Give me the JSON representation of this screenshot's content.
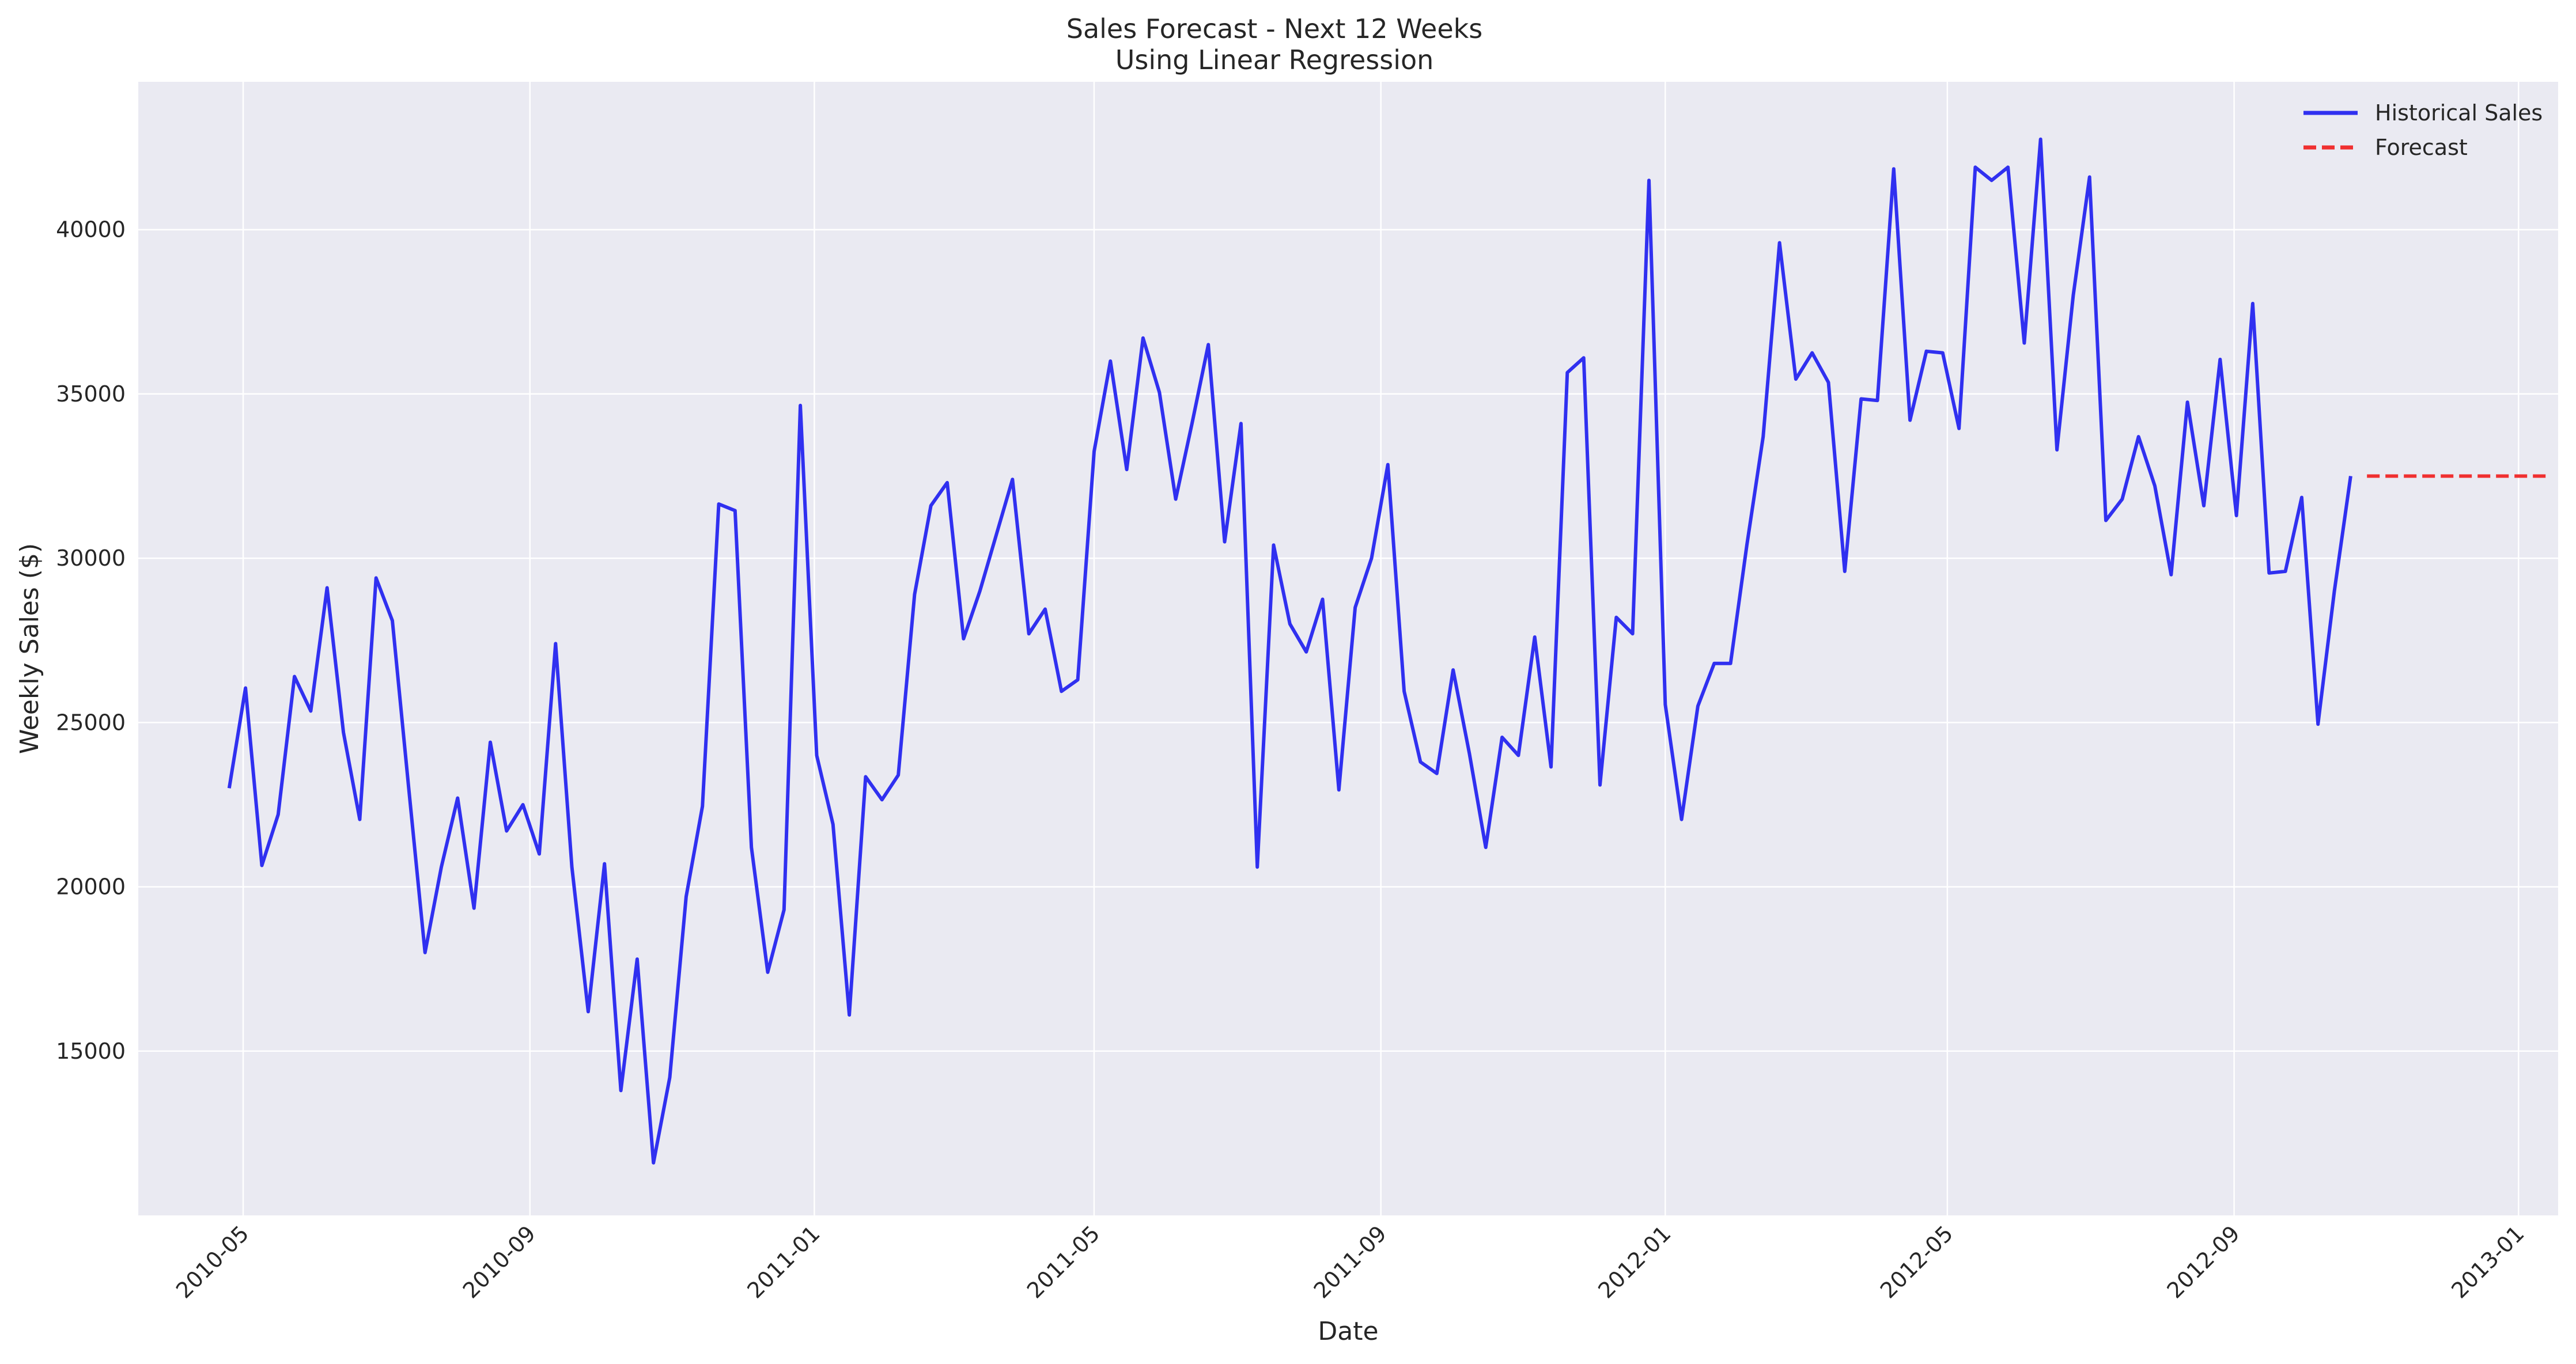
{
  "chart_data": {
    "type": "line",
    "title": "Sales Forecast - Next 12 Weeks",
    "subtitle": "Using Linear Regression",
    "xlabel": "Date",
    "ylabel": "Weekly Sales ($)",
    "xlim": [
      "2010-03-17",
      "2013-01-18"
    ],
    "ylim": [
      10000,
      44500
    ],
    "x_ticks": [
      {
        "date": "2010-05-01",
        "label": "2010-05"
      },
      {
        "date": "2010-09-01",
        "label": "2010-09"
      },
      {
        "date": "2011-01-01",
        "label": "2011-01"
      },
      {
        "date": "2011-05-01",
        "label": "2011-05"
      },
      {
        "date": "2011-09-01",
        "label": "2011-09"
      },
      {
        "date": "2012-01-01",
        "label": "2012-01"
      },
      {
        "date": "2012-05-01",
        "label": "2012-05"
      },
      {
        "date": "2012-09-01",
        "label": "2012-09"
      },
      {
        "date": "2013-01-01",
        "label": "2013-01"
      }
    ],
    "y_ticks": [
      15000,
      20000,
      25000,
      30000,
      35000,
      40000
    ],
    "grid": true,
    "legend_position": "top-right",
    "series": [
      {
        "name": "Historical Sales",
        "color": "#0000ee",
        "style": "solid",
        "start_date": "2010-04-25",
        "interval_days": 7,
        "values": [
          23000,
          26050,
          20650,
          22200,
          26400,
          25350,
          29100,
          24700,
          22050,
          29400,
          28100,
          23000,
          18000,
          20600,
          22700,
          19350,
          24400,
          21700,
          22500,
          21000,
          27400,
          20600,
          16200,
          20700,
          13800,
          17800,
          11600,
          14200,
          19700,
          22450,
          31650,
          31450,
          21200,
          17400,
          19300,
          34650,
          24000,
          21900,
          16100,
          23350,
          22650,
          23400,
          28900,
          31600,
          32300,
          27550,
          29000,
          30700,
          32400,
          27700,
          28450,
          25950,
          26300,
          33250,
          36000,
          32700,
          36700,
          35050,
          31800,
          34100,
          36500,
          30500,
          34100,
          20600,
          30400,
          28000,
          27150,
          28750,
          22950,
          28500,
          30000,
          32850,
          25950,
          23800,
          23450,
          26600,
          24050,
          21200,
          24550,
          24000,
          27600,
          23650,
          35650,
          36100,
          23100,
          28200,
          27700,
          41500,
          25550,
          22050,
          25500,
          26800,
          26800,
          30400,
          33700,
          39600,
          35450,
          36250,
          35350,
          29600,
          34850,
          34800,
          41850,
          34200,
          36300,
          36250,
          33950,
          41900,
          41500,
          41900,
          36550,
          42750,
          33300,
          38000,
          41600,
          31150,
          31800,
          33700,
          32200,
          29500,
          34750,
          31600,
          36050,
          31300,
          37750,
          29550,
          29600,
          31850,
          24950,
          29000,
          32500
        ]
      },
      {
        "name": "Forecast",
        "color": "#ee0000",
        "style": "dashed",
        "start_date": "2012-10-28",
        "interval_days": 7,
        "values": [
          32500,
          32500,
          32500,
          32500,
          32500,
          32500,
          32500,
          32500,
          32500,
          32500,
          32500,
          32500
        ]
      }
    ]
  }
}
